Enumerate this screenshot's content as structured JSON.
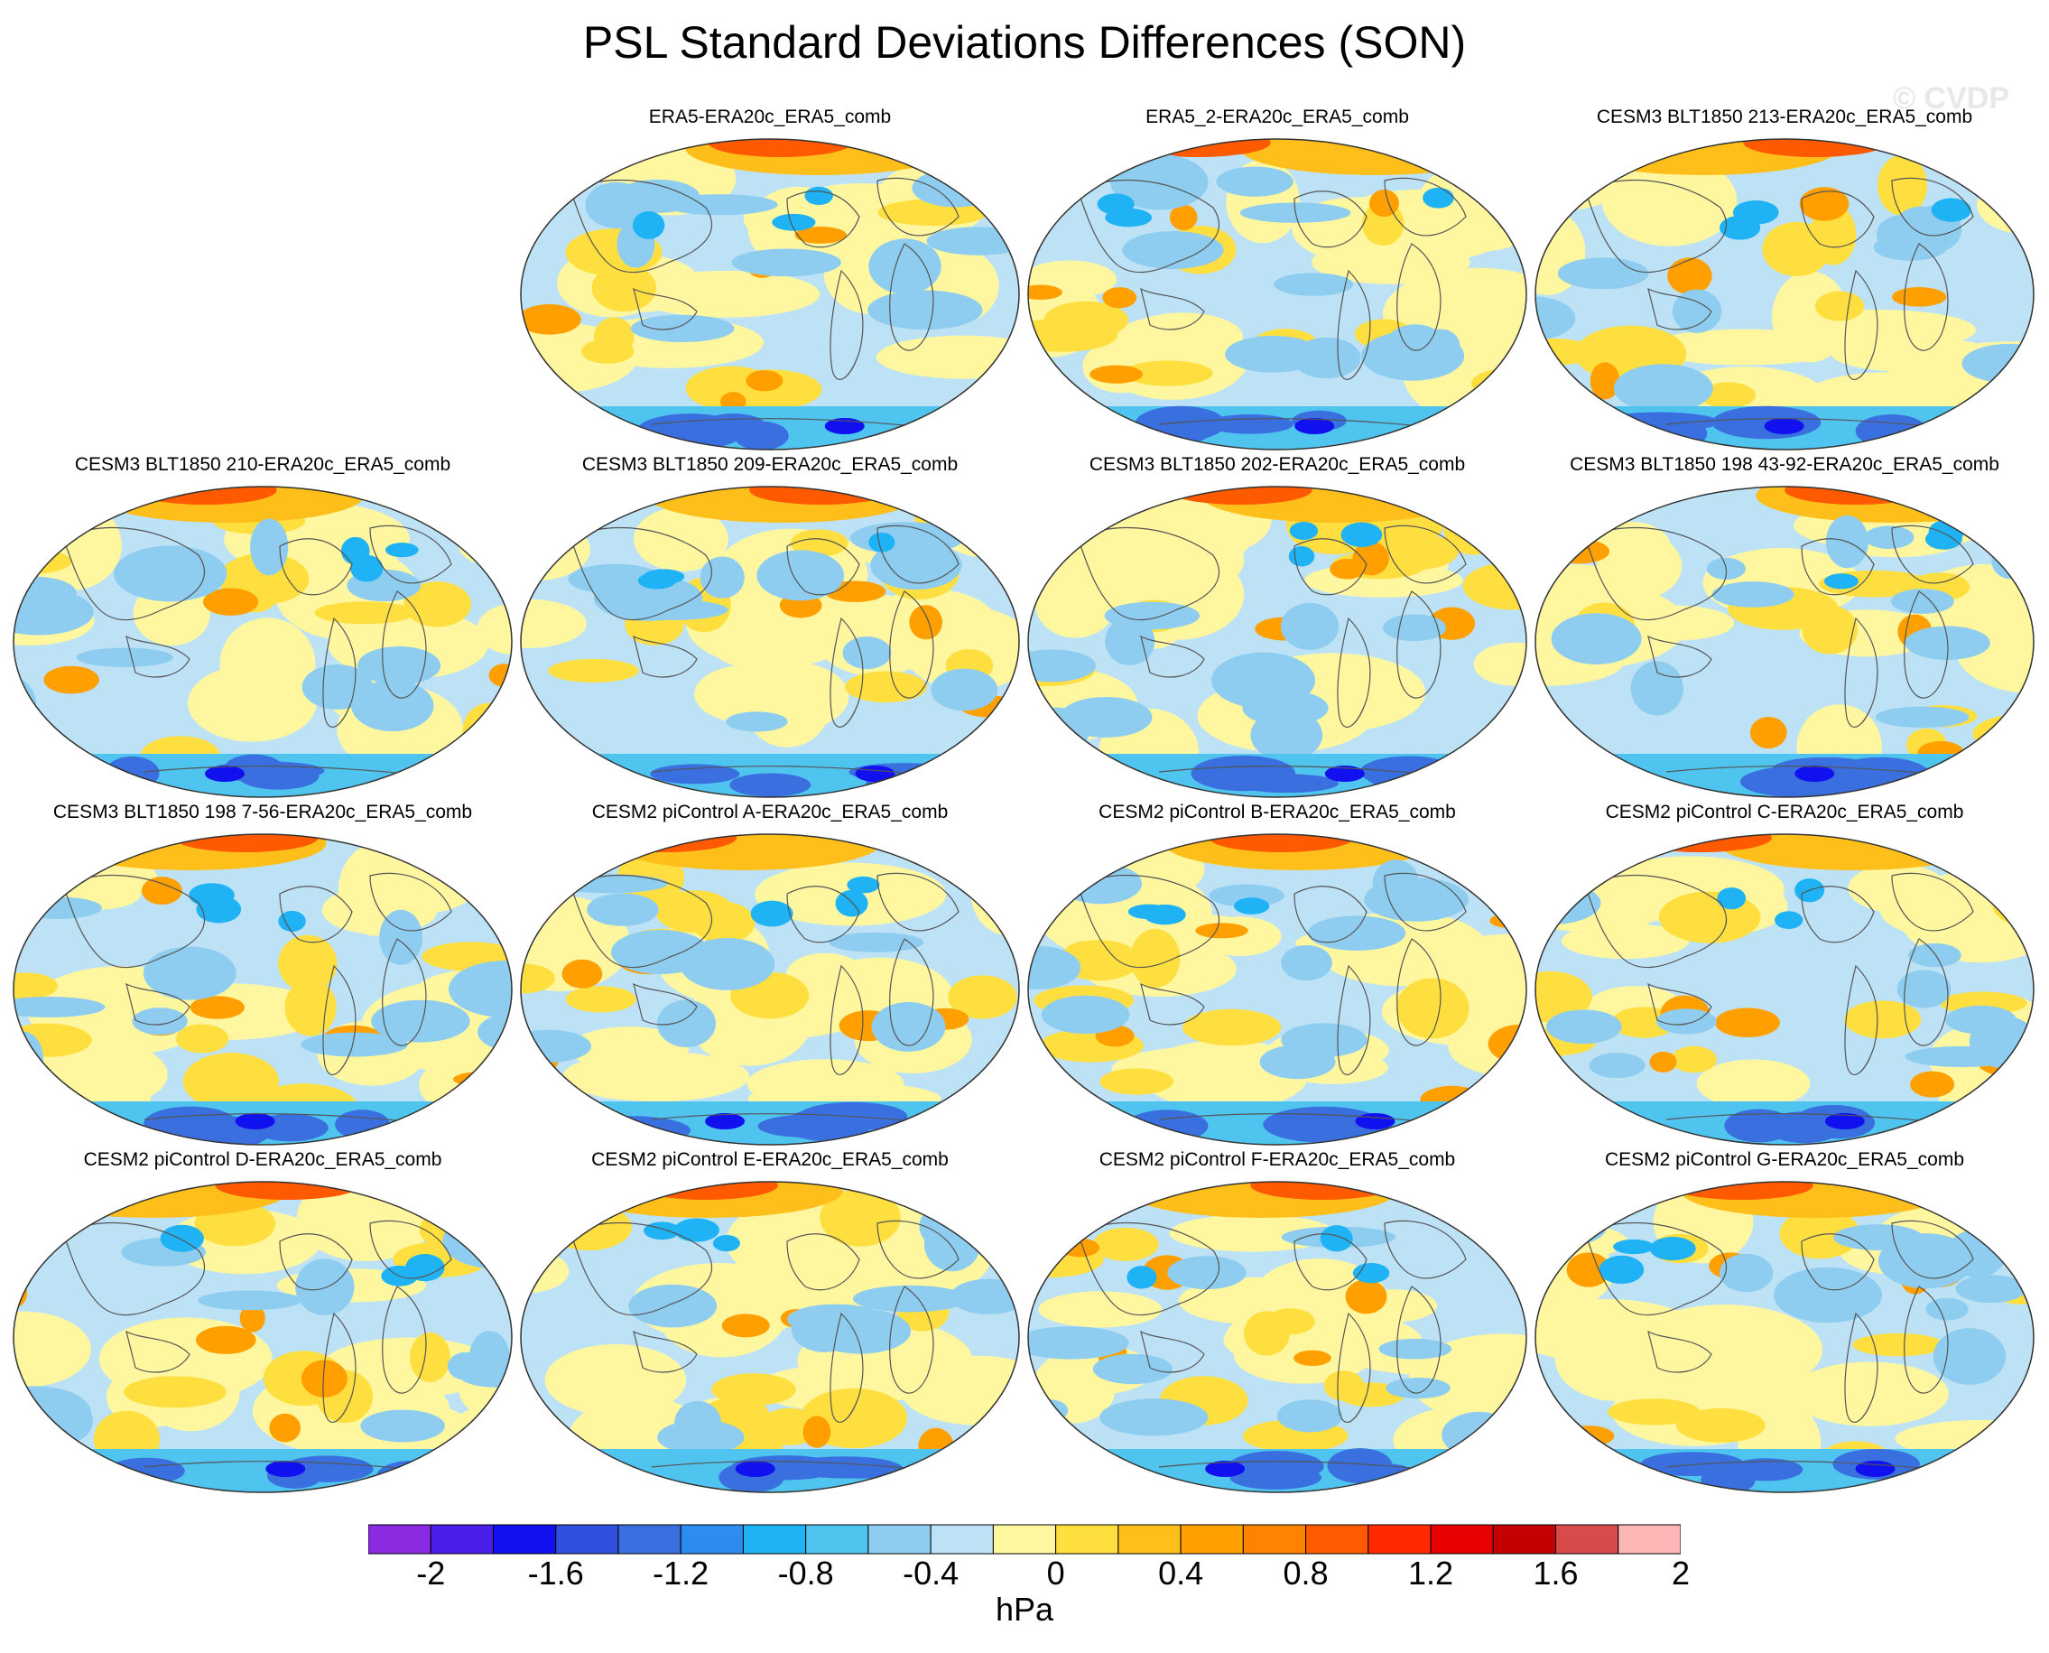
{
  "title": "PSL Standard Deviations Differences (SON)",
  "watermark": "© CVDP",
  "panels": [
    "ERA5-ERA20c_ERA5_comb",
    "ERA5_2-ERA20c_ERA5_comb",
    "CESM3 BLT1850 213-ERA20c_ERA5_comb",
    "CESM3 BLT1850 210-ERA20c_ERA5_comb",
    "CESM3 BLT1850 209-ERA20c_ERA5_comb",
    "CESM3 BLT1850 202-ERA20c_ERA5_comb",
    "CESM3 BLT1850 198 43-92-ERA20c_ERA5_comb",
    "CESM3 BLT1850 198 7-56-ERA20c_ERA5_comb",
    "CESM2 piControl A-ERA20c_ERA5_comb",
    "CESM2 piControl B-ERA20c_ERA5_comb",
    "CESM2 piControl C-ERA20c_ERA5_comb",
    "CESM2 piControl D-ERA20c_ERA5_comb",
    "CESM2 piControl E-ERA20c_ERA5_comb",
    "CESM2 piControl F-ERA20c_ERA5_comb",
    "CESM2 piControl G-ERA20c_ERA5_comb"
  ],
  "colorbar": {
    "colors": [
      "#8a2be2",
      "#4b1de8",
      "#1111f0",
      "#2f4fdc",
      "#3a6fe0",
      "#2d8cf0",
      "#1fb3f5",
      "#4fc4ef",
      "#8ecdf0",
      "#bde2f6",
      "#fff7a0",
      "#ffdf40",
      "#ffbf1a",
      "#ffa000",
      "#ff8200",
      "#ff5a00",
      "#ff2a00",
      "#e80000",
      "#c40000",
      "#d94a4a",
      "#ffb6b6"
    ],
    "labels": [
      "-2",
      "-1.6",
      "-1.2",
      "-0.8",
      "-0.4",
      "0",
      "0.4",
      "0.8",
      "1.2",
      "1.6",
      "2"
    ],
    "label_boundary_index": [
      1,
      3,
      5,
      7,
      9,
      11,
      13,
      15,
      17,
      19,
      21
    ],
    "units": "hPa"
  }
}
